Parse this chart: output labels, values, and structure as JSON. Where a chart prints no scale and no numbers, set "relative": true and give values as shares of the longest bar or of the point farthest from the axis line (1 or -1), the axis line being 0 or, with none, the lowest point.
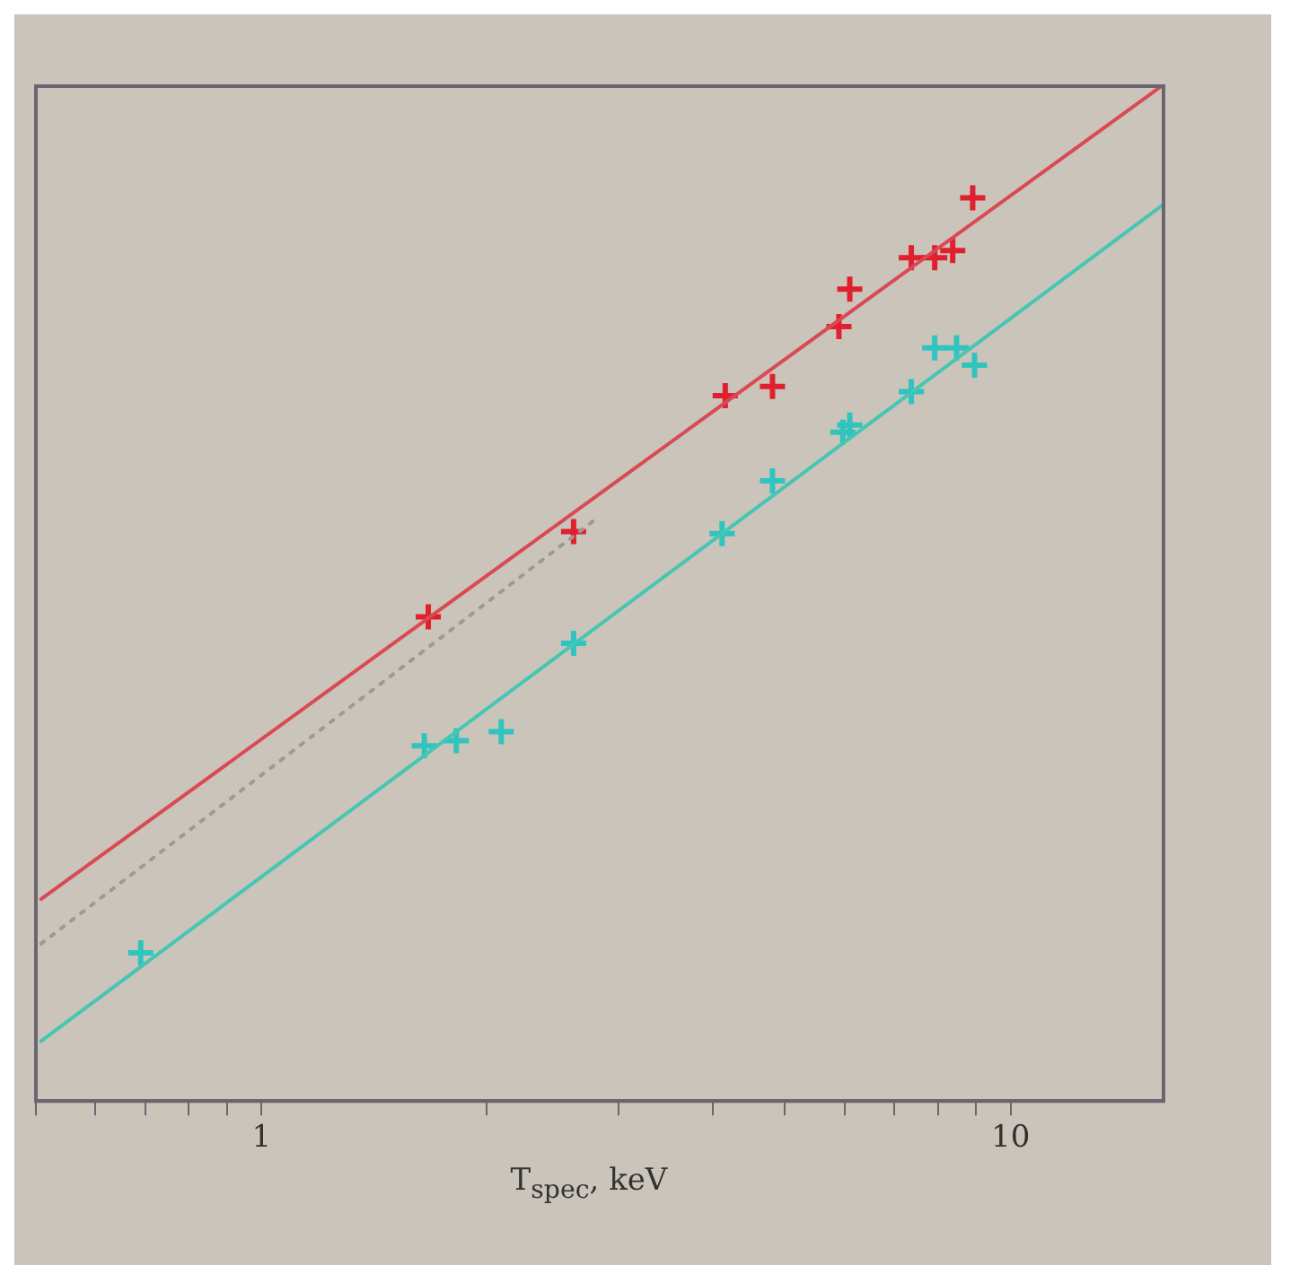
{
  "chart_data": {
    "type": "scatter",
    "xlabel": "T$_{spec}$, keV",
    "log": "x",
    "relative": true,
    "xlim": [
      0.5,
      16
    ],
    "xticks": [
      {
        "value": 0.5,
        "label": null
      },
      {
        "value": 0.6,
        "label": null
      },
      {
        "value": 0.7,
        "label": null
      },
      {
        "value": 0.8,
        "label": null
      },
      {
        "value": 0.9,
        "label": null
      },
      1,
      {
        "value": 2,
        "label": null
      },
      {
        "value": 3,
        "label": null
      },
      {
        "value": 4,
        "label": null
      },
      {
        "value": 5,
        "label": null
      },
      {
        "value": 6,
        "label": null
      },
      {
        "value": 7,
        "label": null
      },
      {
        "value": 8,
        "label": null
      },
      {
        "value": 9,
        "label": null
      },
      10
    ],
    "grid": false,
    "legend": false,
    "series": [
      {
        "type": "line",
        "color": "#d94a55",
        "marker": "none",
        "line_style": "solid",
        "x": [
          0.508,
          15.9
        ],
        "values": [
          0.199,
          1
        ]
      },
      {
        "type": "line",
        "color": "#9a9a9a",
        "marker": "none",
        "line_style": "dotted",
        "x": [
          0.508,
          2.79
        ],
        "values": [
          0.155,
          0.573
        ]
      },
      {
        "type": "line",
        "color": "#45c6b4",
        "marker": "none",
        "line_style": "solid",
        "x": [
          0.508,
          15.9
        ],
        "values": [
          0.059,
          0.882
        ]
      },
      {
        "color": "#e0202e",
        "marker": "cross",
        "x": [
          1.67,
          2.61,
          4.16,
          4.81,
          5.9,
          6.1,
          7.37,
          7.92,
          8.37,
          8.9
        ],
        "values": [
          0.477,
          0.561,
          0.695,
          0.704,
          0.763,
          0.8,
          0.831,
          0.831,
          0.838,
          0.89
        ]
      },
      {
        "color": "#2fc4be",
        "marker": "cross",
        "x": [
          0.69,
          1.65,
          1.82,
          2.09,
          2.61,
          4.12,
          4.81,
          5.97,
          6.1,
          7.37,
          7.92,
          8.47,
          8.95
        ],
        "values": [
          0.146,
          0.35,
          0.355,
          0.364,
          0.451,
          0.559,
          0.611,
          0.659,
          0.666,
          0.699,
          0.742,
          0.742,
          0.725
        ]
      }
    ]
  }
}
